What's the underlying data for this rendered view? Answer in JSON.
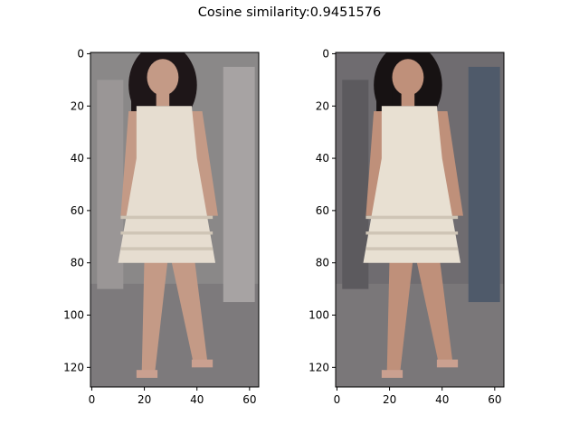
{
  "title": "Cosine similarity:0.9451576",
  "chart_data": [
    {
      "type": "image",
      "content": "person-image",
      "xlim": [
        -0.5,
        63.5
      ],
      "ylim": [
        127.5,
        -0.5
      ],
      "xticks": [
        0,
        20,
        40,
        60
      ],
      "yticks": [
        0,
        20,
        40,
        60,
        80,
        100,
        120
      ],
      "colors": {
        "bg": "#8a8888",
        "skin": "#c49a86",
        "hair": "#1e1618",
        "dress": "#e6ddd0",
        "ground": "#7d7a7c"
      }
    },
    {
      "type": "image",
      "content": "person-image",
      "xlim": [
        -0.5,
        63.5
      ],
      "ylim": [
        127.5,
        -0.5
      ],
      "xticks": [
        0,
        20,
        40,
        60
      ],
      "yticks": [
        0,
        20,
        40,
        60,
        80,
        100,
        120
      ],
      "colors": {
        "bg": "#6f6c70",
        "skin": "#bf907a",
        "hair": "#171213",
        "dress": "#e8e0d2",
        "ground": "#7a7779"
      }
    }
  ]
}
